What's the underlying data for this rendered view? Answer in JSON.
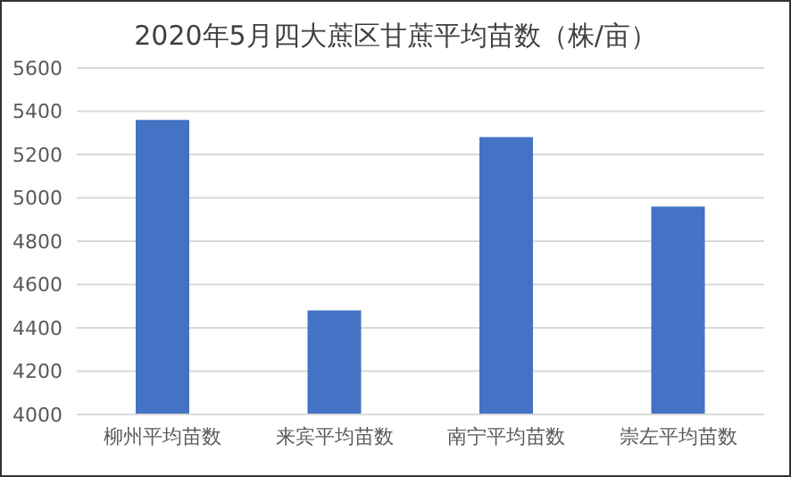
{
  "chart_data": {
    "type": "bar",
    "title": "2020年5月四大蔗区甘蔗平均苗数（株/亩）",
    "categories": [
      "柳州平均苗数",
      "来宾平均苗数",
      "南宁平均苗数",
      "崇左平均苗数"
    ],
    "values": [
      5360,
      4480,
      5280,
      4960
    ],
    "color": "#4472c4",
    "ylim": [
      4000,
      5600
    ],
    "yticks": [
      4000,
      4200,
      4400,
      4600,
      4800,
      5000,
      5200,
      5400,
      5600
    ],
    "grid": "y"
  }
}
